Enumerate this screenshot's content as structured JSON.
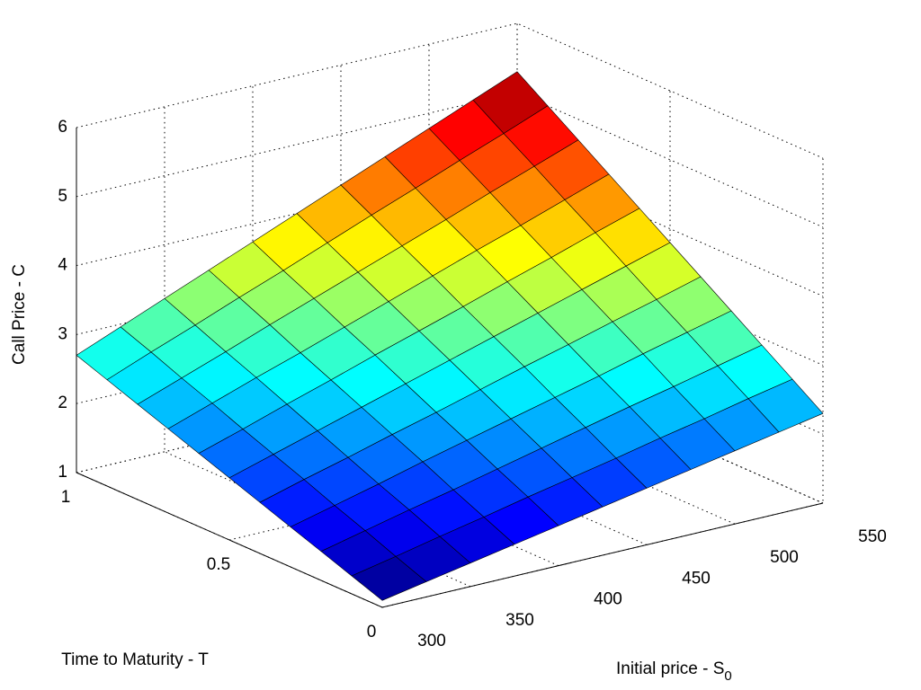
{
  "chart_data": {
    "type": "surface",
    "x_label": {
      "text": "Initial price - S",
      "subscript": "0"
    },
    "y_label": "Time to Maturity - T",
    "z_label": "Call Price - C",
    "x": [
      300,
      325,
      350,
      375,
      400,
      425,
      450,
      475,
      500,
      525,
      550
    ],
    "y": [
      0,
      0.1,
      0.2,
      0.3,
      0.4,
      0.5,
      0.6,
      0.7,
      0.8,
      0.9,
      1
    ],
    "z": [
      [
        1.1,
        1.22,
        1.34,
        1.46,
        1.58,
        1.7,
        1.82,
        1.94,
        2.06,
        2.18,
        2.3
      ],
      [
        1.26,
        1.39,
        1.53,
        1.66,
        1.8,
        1.93,
        2.06,
        2.2,
        2.33,
        2.47,
        2.6
      ],
      [
        1.42,
        1.57,
        1.72,
        1.86,
        2.01,
        2.16,
        2.31,
        2.46,
        2.6,
        2.75,
        2.9
      ],
      [
        1.58,
        1.74,
        1.9,
        2.07,
        2.23,
        2.39,
        2.55,
        2.71,
        2.88,
        3.04,
        3.2
      ],
      [
        1.74,
        1.92,
        2.09,
        2.27,
        2.44,
        2.62,
        2.8,
        2.97,
        3.15,
        3.32,
        3.5
      ],
      [
        1.9,
        2.09,
        2.28,
        2.47,
        2.66,
        2.85,
        3.04,
        3.23,
        3.42,
        3.61,
        3.8
      ],
      [
        2.06,
        2.26,
        2.47,
        2.67,
        2.88,
        3.08,
        3.28,
        3.49,
        3.69,
        3.9,
        4.1
      ],
      [
        2.22,
        2.44,
        2.66,
        2.87,
        3.09,
        3.31,
        3.53,
        3.75,
        3.96,
        4.18,
        4.4
      ],
      [
        2.38,
        2.61,
        2.84,
        3.08,
        3.31,
        3.54,
        3.77,
        4.0,
        4.24,
        4.47,
        4.7
      ],
      [
        2.54,
        2.79,
        3.03,
        3.28,
        3.52,
        3.77,
        4.02,
        4.26,
        4.51,
        4.75,
        5.0
      ],
      [
        2.7,
        2.96,
        3.22,
        3.48,
        3.74,
        4.0,
        4.26,
        4.52,
        4.78,
        5.04,
        5.3
      ]
    ],
    "xlim": [
      300,
      550
    ],
    "xticks": [
      300,
      350,
      400,
      450,
      500,
      550
    ],
    "ylim": [
      0,
      1
    ],
    "yticks": [
      0,
      0.5,
      1
    ],
    "zlim": [
      1,
      6
    ],
    "zticks": [
      1,
      2,
      3,
      4,
      5,
      6
    ],
    "colormap": "jet",
    "grid": true
  }
}
